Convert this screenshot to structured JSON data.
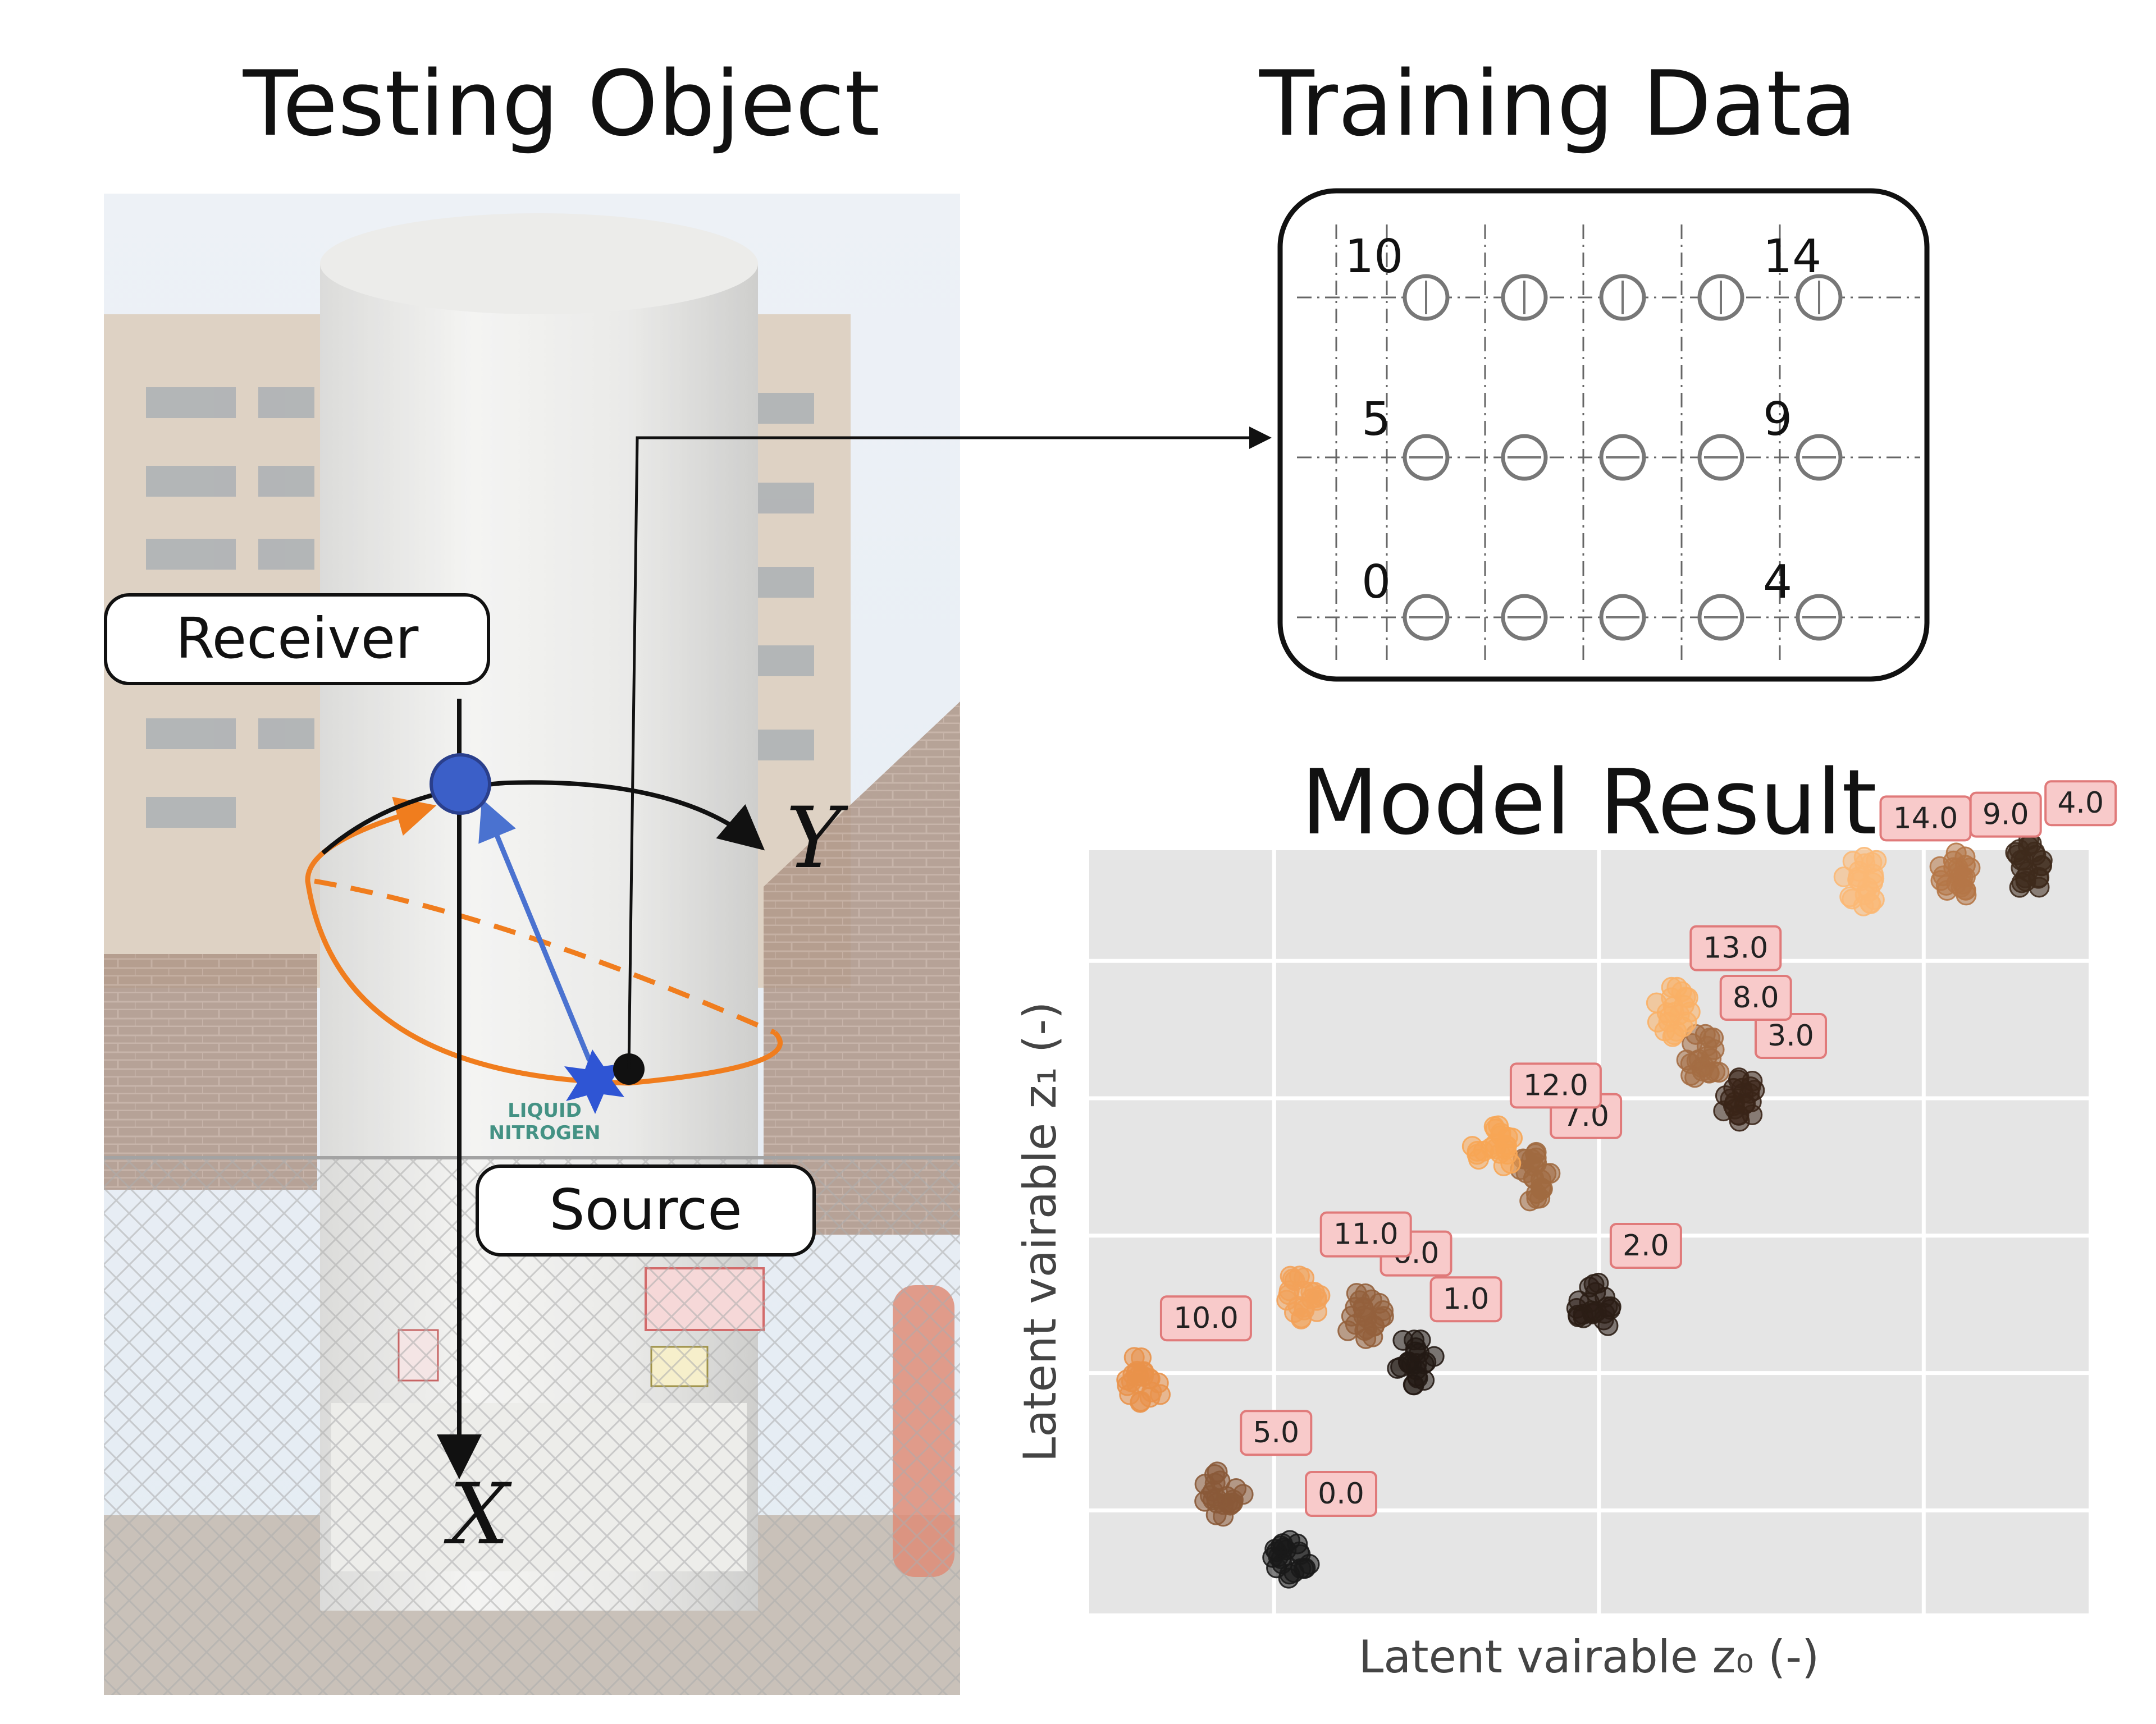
{
  "titles": {
    "testing_object": "Testing Object",
    "training_data": "Training Data",
    "model_result": "Model Result"
  },
  "photo": {
    "receiver_label": "Receiver",
    "source_label": "Source",
    "axis_x": "X",
    "axis_y": "Y",
    "tank_sign_line1": "LIQUID",
    "tank_sign_line2": "NITROGEN",
    "colors": {
      "receiver_marker": "#3b5fc8",
      "source_burst": "#2f55d4",
      "orbit": "#f07d1e",
      "ray": "#4a72d0"
    }
  },
  "training_grid": {
    "rows": 3,
    "cols": 5,
    "labels": {
      "top_left": "10",
      "top_right": "14",
      "mid_left": "5",
      "mid_right": "9",
      "bottom_left": "0",
      "bottom_right": "4"
    }
  },
  "chart_data": {
    "type": "scatter",
    "xlabel": "Latent vairable z₀ (-)",
    "ylabel": "Latent vairable z₁ (-)",
    "xlim": [
      0,
      100
    ],
    "ylim": [
      0,
      100
    ],
    "grid": true,
    "background": "#e5e5e5",
    "clusters": [
      {
        "label": "0.0",
        "x": 20.0,
        "y": 7.5,
        "color": "#1a1a1a"
      },
      {
        "label": "1.0",
        "x": 32.5,
        "y": 33.0,
        "color": "#231a14"
      },
      {
        "label": "2.0",
        "x": 50.5,
        "y": 40.0,
        "color": "#2b1e15"
      },
      {
        "label": "3.0",
        "x": 65.0,
        "y": 67.5,
        "color": "#3a2518"
      },
      {
        "label": "4.0",
        "x": 94.0,
        "y": 98.0,
        "color": "#3e2a1c"
      },
      {
        "label": "5.0",
        "x": 13.5,
        "y": 15.5,
        "color": "#8a5a38"
      },
      {
        "label": "6.0",
        "x": 27.5,
        "y": 39.0,
        "color": "#94613c"
      },
      {
        "label": "7.0",
        "x": 44.5,
        "y": 57.0,
        "color": "#a06a40"
      },
      {
        "label": "8.0",
        "x": 61.5,
        "y": 72.5,
        "color": "#a46d44"
      },
      {
        "label": "9.0",
        "x": 86.5,
        "y": 96.5,
        "color": "#b57747"
      },
      {
        "label": "10.0",
        "x": 5.5,
        "y": 30.5,
        "color": "#e9924a"
      },
      {
        "label": "11.0",
        "x": 21.5,
        "y": 41.5,
        "color": "#f3a25a"
      },
      {
        "label": "12.0",
        "x": 40.5,
        "y": 61.0,
        "color": "#f7a655"
      },
      {
        "label": "13.0",
        "x": 58.5,
        "y": 79.0,
        "color": "#f9b066"
      },
      {
        "label": "14.0",
        "x": 77.5,
        "y": 96.0,
        "color": "#fbb874"
      }
    ]
  }
}
